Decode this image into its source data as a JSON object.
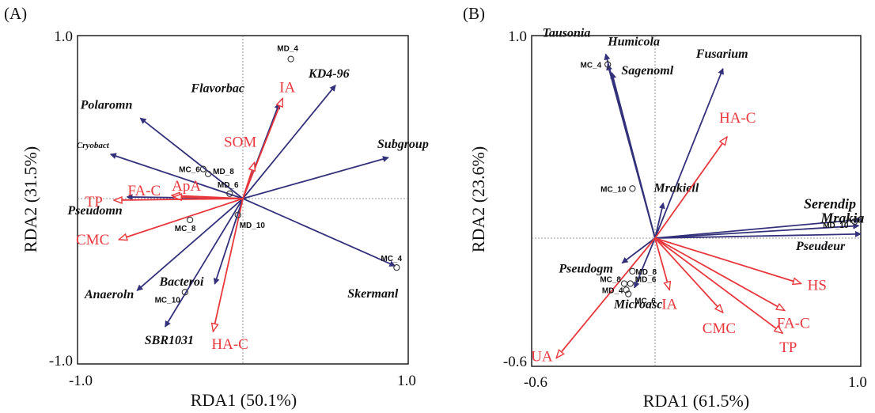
{
  "colors": {
    "species": "#33317a",
    "environment": "#e8383d",
    "origin_line": "#7a7a7a",
    "sample_marker": "#333333"
  },
  "chart_data": [
    {
      "type": "scatter",
      "panel_label": "(A)",
      "xlabel": "RDA1 (50.1%)",
      "ylabel": "RDA2 (31.5%)",
      "xlim": [
        -1.0,
        1.0
      ],
      "ylim": [
        -1.0,
        1.0
      ],
      "x_ticks": [
        "-1.0",
        "1.0"
      ],
      "y_ticks": [
        "1.0",
        "-1.0"
      ],
      "species_arrows": [
        {
          "label": "Polaromn",
          "x": -0.62,
          "y": 0.49
        },
        {
          "label": "Cryobact",
          "x": -0.8,
          "y": 0.27
        },
        {
          "label": "Pseudomn",
          "x": -0.7,
          "y": 0.01
        },
        {
          "label": "Anaeroln",
          "x": -0.64,
          "y": -0.56
        },
        {
          "label": "SBR1031",
          "x": -0.47,
          "y": -0.78
        },
        {
          "label": "Bacteroi",
          "x": -0.17,
          "y": -0.52
        },
        {
          "label": "Flavorbac",
          "x": 0.22,
          "y": 0.58
        },
        {
          "label": "KD4-96",
          "x": 0.56,
          "y": 0.69
        },
        {
          "label": "Subgroup",
          "x": 0.88,
          "y": 0.25
        },
        {
          "label": "Skermanl",
          "x": 0.92,
          "y": -0.41
        }
      ],
      "env_vectors": [
        {
          "label": "IA",
          "x": 0.24,
          "y": 0.61
        },
        {
          "label": "SOM",
          "x": 0.07,
          "y": 0.22
        },
        {
          "label": "ApA",
          "x": -0.43,
          "y": 0.02
        },
        {
          "label": "FA-C",
          "x": -0.42,
          "y": 0.01
        },
        {
          "label": "TP",
          "x": -0.78,
          "y": -0.01
        },
        {
          "label": "CMC",
          "x": -0.75,
          "y": -0.25
        },
        {
          "label": "HA-C",
          "x": -0.18,
          "y": -0.81
        }
      ],
      "samples": [
        {
          "label": "MD_4",
          "x": 0.29,
          "y": 0.85
        },
        {
          "label": "MC_6",
          "x": -0.24,
          "y": 0.18
        },
        {
          "label": "MD_8",
          "x": -0.21,
          "y": 0.15
        },
        {
          "label": "MD_6",
          "x": -0.08,
          "y": 0.03
        },
        {
          "label": "MC_8",
          "x": -0.32,
          "y": -0.13
        },
        {
          "label": "MD_10",
          "x": -0.03,
          "y": -0.1
        },
        {
          "label": "MC_10",
          "x": -0.35,
          "y": -0.57
        },
        {
          "label": "MC_4",
          "x": 0.93,
          "y": -0.42
        }
      ]
    },
    {
      "type": "scatter",
      "panel_label": "(B)",
      "xlabel": "RDA1 (61.5%)",
      "ylabel": "RDA2 (23.6%)",
      "xlim": [
        -0.6,
        1.0
      ],
      "ylim": [
        -0.6,
        1.0
      ],
      "x_ticks": [
        "-0.6",
        "1.0"
      ],
      "y_ticks": [
        "1.0",
        "-0.6"
      ],
      "species_arrows": [
        {
          "label": "Tausonia",
          "x": -0.24,
          "y": 0.89
        },
        {
          "label": "Humicola",
          "x": -0.23,
          "y": 0.84
        },
        {
          "label": "Sagenoml",
          "x": -0.21,
          "y": 0.8
        },
        {
          "label": "Fusarium",
          "x": 0.33,
          "y": 0.82
        },
        {
          "label": "Mrakiell",
          "x": 0.04,
          "y": 0.17
        },
        {
          "label": "Serendip",
          "x": 1.0,
          "y": 0.09
        },
        {
          "label": "Mrakia",
          "x": 0.99,
          "y": 0.06
        },
        {
          "label": "Pseudeur",
          "x": 1.0,
          "y": 0.02
        },
        {
          "label": "Pseudogm",
          "x": -0.16,
          "y": -0.12
        },
        {
          "label": "Microasc",
          "x": -0.1,
          "y": -0.24
        }
      ],
      "env_vectors": [
        {
          "label": "HA-C",
          "x": 0.35,
          "y": 0.49
        },
        {
          "label": "HS",
          "x": 0.71,
          "y": -0.22
        },
        {
          "label": "FA-C",
          "x": 0.63,
          "y": -0.35
        },
        {
          "label": "TP",
          "x": 0.62,
          "y": -0.46
        },
        {
          "label": "CMC",
          "x": 0.33,
          "y": -0.36
        },
        {
          "label": "IA",
          "x": 0.07,
          "y": -0.25
        },
        {
          "label": "UA",
          "x": -0.48,
          "y": -0.58
        }
      ],
      "samples": [
        {
          "label": "MC_4",
          "x": -0.23,
          "y": 0.84
        },
        {
          "label": "MC_10",
          "x": -0.11,
          "y": 0.24
        },
        {
          "label": "MD_10",
          "x": 0.97,
          "y": 0.08
        },
        {
          "label": "MD_8",
          "x": -0.11,
          "y": -0.16
        },
        {
          "label": "MC_8",
          "x": -0.15,
          "y": -0.22
        },
        {
          "label": "MD_6",
          "x": -0.12,
          "y": -0.22
        },
        {
          "label": "MD_4",
          "x": -0.14,
          "y": -0.25
        },
        {
          "label": "MC_6",
          "x": -0.13,
          "y": -0.27
        }
      ]
    }
  ]
}
